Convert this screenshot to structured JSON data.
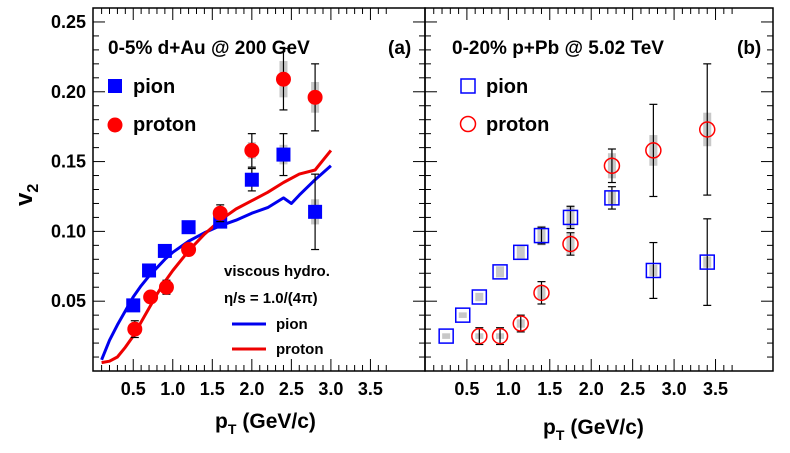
{
  "chart_data": [
    {
      "panel": "(a)",
      "type": "scatter",
      "title": "0-5% d+Au @ 200 GeV",
      "xlabel": "p",
      "xlabel_sub": "T",
      "xlabel_unit": "(GeV/c)",
      "ylabel": "v",
      "ylabel_sub": "2",
      "xlim": [
        0.0,
        3.8
      ],
      "ylim": [
        0.0,
        0.26
      ],
      "x_ticks": [
        0.5,
        1.0,
        1.5,
        2.0,
        2.5,
        3.0,
        3.5
      ],
      "x_tick_labels": [
        "0.5",
        "1.0",
        "1.5",
        "2.0",
        "2.5",
        "3.0",
        "3.5"
      ],
      "y_ticks": [
        0.05,
        0.1,
        0.15,
        0.2,
        0.25
      ],
      "y_tick_labels": [
        "0.05",
        "0.10",
        "0.15",
        "0.20",
        "0.25"
      ],
      "legend": [
        {
          "label": "pion",
          "marker": "square-filled",
          "color": "#0000ff"
        },
        {
          "label": "proton",
          "marker": "circle-filled",
          "color": "#ff0000"
        }
      ],
      "series": [
        {
          "name": "pion",
          "marker": "square-filled",
          "color": "#0000ff",
          "x": [
            0.5,
            0.7,
            0.9,
            1.2,
            1.6,
            2.0,
            2.4,
            2.8
          ],
          "y": [
            0.047,
            0.072,
            0.086,
            0.103,
            0.107,
            0.137,
            0.155,
            0.114
          ],
          "err": [
            0,
            0,
            0,
            0,
            0.004,
            0.008,
            0.015,
            0.027
          ],
          "sys": [
            0,
            0,
            0,
            0,
            0.002,
            0.004,
            0.007,
            0.009
          ]
        },
        {
          "name": "proton",
          "marker": "circle-filled",
          "color": "#ff0000",
          "x": [
            0.52,
            0.72,
            0.92,
            1.2,
            1.6,
            2.0,
            2.4,
            2.8
          ],
          "y": [
            0.03,
            0.053,
            0.06,
            0.087,
            0.113,
            0.158,
            0.209,
            0.196
          ],
          "err": [
            0.006,
            0.004,
            0.005,
            0.003,
            0.006,
            0.012,
            0.022,
            0.024
          ],
          "sys": [
            0.002,
            0.002,
            0.002,
            0.002,
            0.003,
            0.006,
            0.013,
            0.011
          ]
        }
      ],
      "curves_title": [
        "viscous hydro.",
        "η/s = 1.0/(4π)"
      ],
      "curves": [
        {
          "name": "pion",
          "type": "line",
          "color": "#0000ee",
          "x": [
            0.1,
            0.2,
            0.3,
            0.4,
            0.5,
            0.6,
            0.7,
            0.8,
            0.9,
            1.0,
            1.2,
            1.4,
            1.6,
            1.8,
            2.0,
            2.2,
            2.4,
            2.5,
            2.6,
            2.8,
            3.0
          ],
          "y": [
            0.008,
            0.022,
            0.033,
            0.043,
            0.053,
            0.061,
            0.068,
            0.074,
            0.08,
            0.085,
            0.093,
            0.099,
            0.104,
            0.108,
            0.113,
            0.117,
            0.124,
            0.12,
            0.126,
            0.137,
            0.147
          ]
        },
        {
          "name": "proton",
          "type": "line",
          "color": "#ee0000",
          "x": [
            0.1,
            0.2,
            0.3,
            0.4,
            0.5,
            0.6,
            0.7,
            0.8,
            0.9,
            1.0,
            1.2,
            1.4,
            1.6,
            1.8,
            2.0,
            2.2,
            2.4,
            2.6,
            2.8,
            2.9,
            3.0
          ],
          "y": [
            0.006,
            0.007,
            0.01,
            0.017,
            0.025,
            0.035,
            0.045,
            0.055,
            0.064,
            0.072,
            0.086,
            0.098,
            0.108,
            0.116,
            0.122,
            0.128,
            0.135,
            0.141,
            0.144,
            0.151,
            0.158
          ]
        }
      ]
    },
    {
      "panel": "(b)",
      "type": "scatter",
      "title": "0-20% p+Pb @ 5.02 TeV",
      "xlabel": "p",
      "xlabel_sub": "T",
      "xlabel_unit": "(GeV/c)",
      "xlim": [
        0.0,
        3.8
      ],
      "ylim": [
        0.0,
        0.26
      ],
      "x_ticks": [
        0.5,
        1.0,
        1.5,
        2.0,
        2.5,
        3.0,
        3.5
      ],
      "x_tick_labels": [
        "0.5",
        "1.0",
        "1.5",
        "2.0",
        "2.5",
        "3.0",
        "3.5"
      ],
      "legend": [
        {
          "label": "pion",
          "marker": "square-open",
          "color": "#0000ff"
        },
        {
          "label": "proton",
          "marker": "circle-open",
          "color": "#ff0000"
        }
      ],
      "series": [
        {
          "name": "pion",
          "marker": "square-open",
          "color": "#0000ff",
          "x": [
            0.25,
            0.45,
            0.65,
            0.9,
            1.15,
            1.4,
            1.75,
            2.25,
            2.75,
            3.4
          ],
          "y": [
            0.025,
            0.04,
            0.053,
            0.071,
            0.085,
            0.097,
            0.11,
            0.124,
            0.072,
            0.078
          ],
          "err": [
            0,
            0,
            0,
            0,
            0,
            0.006,
            0.008,
            0.008,
            0.02,
            0.031
          ],
          "sys": [
            0.002,
            0.002,
            0.003,
            0.004,
            0.005,
            0.007,
            0.008,
            0.005,
            0.004,
            0.004
          ]
        },
        {
          "name": "proton",
          "marker": "circle-open",
          "color": "#ff0000",
          "x": [
            0.65,
            0.9,
            1.15,
            1.4,
            1.75,
            2.25,
            2.75,
            3.4
          ],
          "y": [
            0.025,
            0.025,
            0.034,
            0.056,
            0.091,
            0.147,
            0.158,
            0.173
          ],
          "err": [
            0.006,
            0.006,
            0.006,
            0.008,
            0.008,
            0.012,
            0.033,
            0.047
          ],
          "sys": [
            0.002,
            0.002,
            0.003,
            0.005,
            0.007,
            0.009,
            0.011,
            0.012
          ]
        }
      ]
    }
  ],
  "labels": {
    "panel_a_title": "0-5% d+Au @ 200 GeV",
    "panel_a_tag": "(a)",
    "panel_b_title": "0-20% p+Pb @ 5.02 TeV",
    "panel_b_tag": "(b)",
    "ylabel_main": "v",
    "ylabel_sub": "2",
    "xlabel_main": "p",
    "xlabel_sub": "T",
    "xlabel_unit": "(GeV/c)",
    "legend_pion": "pion",
    "legend_proton": "proton",
    "hydro_line1": "viscous hydro.",
    "hydro_line2": "η/s = 1.0/(4π)",
    "hydro_pion": "pion",
    "hydro_proton": "proton"
  },
  "colors": {
    "pion": "#0000ff",
    "proton": "#ff0000",
    "sys_band": "#c8c8c8",
    "axis": "#000000"
  }
}
